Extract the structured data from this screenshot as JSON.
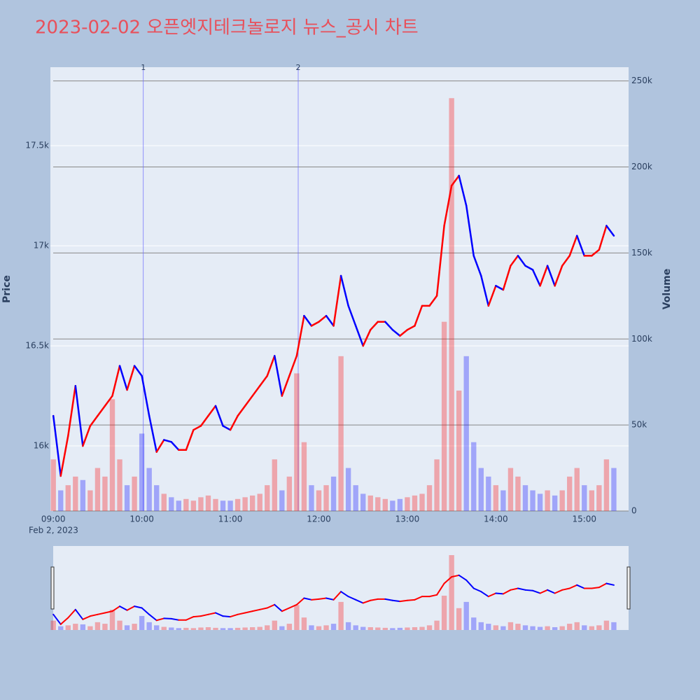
{
  "chart_data": {
    "type": "candlestick",
    "title": "2023-02-02 오픈엣지테크놀로지 뉴스_공시 차트",
    "x_date_label": "Feb 2, 2023",
    "ylabel": "Price",
    "y2label": "Volume",
    "up_color": "#ff0000",
    "down_color": "#0000ff",
    "x": [
      "09:00",
      "09:05",
      "09:10",
      "09:15",
      "09:20",
      "09:25",
      "09:30",
      "09:35",
      "09:40",
      "09:45",
      "09:50",
      "09:55",
      "10:00",
      "10:05",
      "10:10",
      "10:15",
      "10:20",
      "10:25",
      "10:30",
      "10:35",
      "10:40",
      "10:45",
      "10:50",
      "10:55",
      "11:00",
      "11:05",
      "11:10",
      "11:15",
      "11:20",
      "11:25",
      "11:30",
      "11:35",
      "11:40",
      "11:45",
      "11:50",
      "11:55",
      "12:00",
      "12:05",
      "12:10",
      "12:15",
      "12:20",
      "12:25",
      "12:30",
      "12:35",
      "12:40",
      "12:45",
      "12:50",
      "12:55",
      "13:00",
      "13:05",
      "13:10",
      "13:15",
      "13:20",
      "13:25",
      "13:30",
      "13:35",
      "13:40",
      "13:45",
      "13:50",
      "13:55",
      "14:00",
      "14:05",
      "14:10",
      "14:15",
      "14:20",
      "14:25",
      "14:30",
      "14:35",
      "14:40",
      "14:45",
      "14:50",
      "14:55",
      "15:00",
      "15:05",
      "15:10",
      "15:15",
      "15:20"
    ],
    "series": [
      {
        "name": "Price",
        "values": [
          16150,
          15850,
          16050,
          16300,
          16000,
          16100,
          16150,
          16200,
          16250,
          16400,
          16280,
          16400,
          16350,
          16150,
          15970,
          16030,
          16020,
          15980,
          15980,
          16080,
          16100,
          16150,
          16200,
          16100,
          16080,
          16150,
          16200,
          16250,
          16300,
          16350,
          16450,
          16250,
          16350,
          16450,
          16650,
          16600,
          16620,
          16650,
          16600,
          16850,
          16700,
          16600,
          16500,
          16580,
          16620,
          16620,
          16580,
          16550,
          16580,
          16600,
          16700,
          16700,
          16750,
          17100,
          17300,
          17350,
          17200,
          16950,
          16850,
          16700,
          16800,
          16780,
          16900,
          16950,
          16900,
          16880,
          16800,
          16900,
          16800,
          16900,
          16950,
          17050,
          16950,
          16950,
          16980,
          17100,
          17050
        ]
      },
      {
        "name": "Volume",
        "axis": "y2",
        "values": [
          30000,
          12000,
          15000,
          20000,
          18000,
          12000,
          25000,
          20000,
          65000,
          30000,
          15000,
          20000,
          45000,
          25000,
          15000,
          10000,
          8000,
          6000,
          7000,
          6000,
          8000,
          9000,
          7000,
          6000,
          6000,
          7000,
          8000,
          9000,
          10000,
          15000,
          30000,
          12000,
          20000,
          80000,
          40000,
          15000,
          12000,
          15000,
          20000,
          90000,
          25000,
          15000,
          10000,
          9000,
          8000,
          7000,
          6000,
          7000,
          8000,
          9000,
          10000,
          15000,
          30000,
          110000,
          240000,
          70000,
          90000,
          40000,
          25000,
          20000,
          15000,
          12000,
          25000,
          20000,
          15000,
          12000,
          10000,
          12000,
          9000,
          12000,
          20000,
          25000,
          15000,
          12000,
          15000,
          30000,
          25000
        ]
      }
    ],
    "annotations": [
      {
        "x": "10:01",
        "text": "1"
      },
      {
        "x": "11:46",
        "text": "2"
      }
    ],
    "xlim": [
      "08:58",
      "15:30"
    ],
    "xticks": [
      "09:00",
      "10:00",
      "11:00",
      "12:00",
      "13:00",
      "14:00",
      "15:00"
    ],
    "ylim": [
      15675,
      17892
    ],
    "yticks": [
      {
        "value": 16000,
        "label": "16k"
      },
      {
        "value": 16500,
        "label": "16.5k"
      },
      {
        "value": 17000,
        "label": "17k"
      },
      {
        "value": 17500,
        "label": "17.5k"
      }
    ],
    "y2lim": [
      0,
      258000
    ],
    "y2ticks": [
      {
        "value": 0,
        "label": "0"
      },
      {
        "value": 50000,
        "label": "50k"
      },
      {
        "value": 100000,
        "label": "100k"
      },
      {
        "value": 150000,
        "label": "150k"
      },
      {
        "value": 200000,
        "label": "200k"
      },
      {
        "value": 250000,
        "label": "250k"
      }
    ]
  }
}
